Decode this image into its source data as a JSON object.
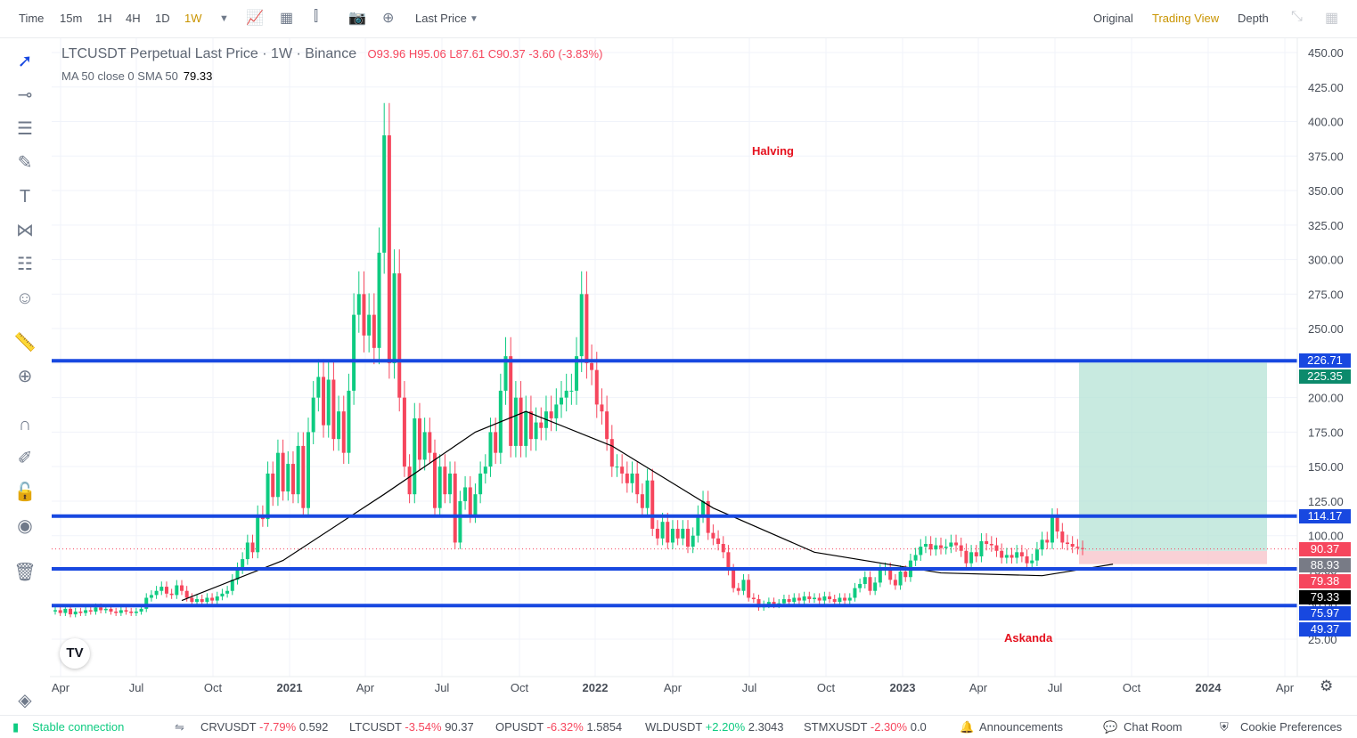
{
  "toolbar": {
    "time_label": "Time",
    "intervals": [
      "15m",
      "1H",
      "4H",
      "1D",
      "1W"
    ],
    "active_interval": "1W",
    "price_type": "Last Price",
    "views": [
      "Original",
      "Trading View",
      "Depth"
    ],
    "active_view": "Trading View",
    "colors": {
      "active": "#c99400",
      "text": "#474d57"
    }
  },
  "legend": {
    "symbol_title": "LTCUSDT Perpetual Last Price · 1W · Binance",
    "open": "O93.96",
    "high": "H95.06",
    "low": "L87.61",
    "close": "C90.37",
    "change": "-3.60 (-3.83%)",
    "ma_label": "MA 50 close 0 SMA 50",
    "ma_value": "79.33"
  },
  "annotations": {
    "halving": "Halving",
    "askanda": "Askanda"
  },
  "price_labels": [
    {
      "text": "226.71",
      "value": 226.71,
      "bg": "#1848e0"
    },
    {
      "text": "225.35",
      "value": 225.35,
      "bg": "#0c8a6c"
    },
    {
      "text": "114.17",
      "value": 114.17,
      "bg": "#1848e0"
    },
    {
      "text": "90.37",
      "value": 90.37,
      "bg": "#f6465d"
    },
    {
      "text": "88.93",
      "value": 88.93,
      "bg": "#787b86"
    },
    {
      "text": "79.38",
      "value": 79.38,
      "bg": "#f6465d"
    },
    {
      "text": "79.33",
      "value": 79.33,
      "bg": "#000000"
    },
    {
      "text": "75.97",
      "value": 75.97,
      "bg": "#1848e0"
    },
    {
      "text": "49.37",
      "value": 49.37,
      "bg": "#1848e0"
    }
  ],
  "chart_data": {
    "type": "candlestick",
    "interval": "1W",
    "y_axis": {
      "ticks": [
        450,
        425,
        400,
        375,
        350,
        325,
        300,
        275,
        250,
        225,
        200,
        175,
        150,
        125,
        100,
        75,
        50,
        25
      ],
      "range": [
        15,
        460
      ]
    },
    "x_axis": {
      "ticks": [
        "Apr",
        "Jul",
        "Oct",
        "2021",
        "Apr",
        "Jul",
        "Oct",
        "2022",
        "Apr",
        "Jul",
        "Oct",
        "2023",
        "Apr",
        "Jul",
        "Oct",
        "2024",
        "Apr"
      ]
    },
    "horizontal_lines": [
      226.71,
      114.17,
      75.97,
      49.37
    ],
    "position_tool": {
      "entry": 88.93,
      "target": 225.35,
      "stop": 79.38
    },
    "last_price": 90.37,
    "ma50_last": 79.33,
    "closes": [
      46,
      44,
      47,
      43,
      45,
      44,
      46,
      45,
      48,
      46,
      47,
      45,
      44,
      46,
      45,
      44,
      45,
      47,
      55,
      57,
      60,
      63,
      58,
      57,
      64,
      60,
      55,
      52,
      54,
      52,
      55,
      53,
      56,
      58,
      60,
      68,
      76,
      83,
      95,
      88,
      115,
      112,
      145,
      128,
      160,
      132,
      152,
      130,
      165,
      120,
      175,
      200,
      215,
      180,
      213,
      170,
      190,
      160,
      205,
      260,
      275,
      245,
      260,
      236,
      305,
      390,
      225,
      290,
      200,
      150,
      130,
      185,
      155,
      175,
      160,
      120,
      150,
      130,
      145,
      95,
      125,
      135,
      115,
      130,
      145,
      150,
      175,
      160,
      205,
      230,
      165,
      200,
      165,
      190,
      170,
      182,
      178,
      190,
      185,
      195,
      200,
      205,
      205,
      230,
      275,
      225,
      220,
      195,
      190,
      170,
      150,
      150,
      145,
      138,
      145,
      130,
      120,
      140,
      105,
      98,
      110,
      95,
      105,
      98,
      105,
      92,
      100,
      115,
      125,
      102,
      98,
      94,
      88,
      75,
      62,
      60,
      68,
      55,
      54,
      48,
      50,
      52,
      50,
      51,
      54,
      52,
      55,
      53,
      56,
      54,
      55,
      53,
      56,
      54,
      52,
      55,
      53,
      55,
      62,
      65,
      70,
      60,
      66,
      75,
      76,
      68,
      64,
      74,
      70,
      82,
      86,
      92,
      94,
      90,
      93,
      91,
      92,
      95,
      93,
      89,
      80,
      88,
      85,
      96,
      94,
      93,
      89,
      84,
      86,
      84,
      88,
      85,
      80,
      82,
      90,
      97,
      95,
      113,
      103,
      95,
      94,
      92,
      91,
      90.37
    ],
    "ma50": [
      {
        "i": 25,
        "v": 53
      },
      {
        "i": 45,
        "v": 82
      },
      {
        "i": 65,
        "v": 130
      },
      {
        "i": 83,
        "v": 175
      },
      {
        "i": 93,
        "v": 190
      },
      {
        "i": 110,
        "v": 165
      },
      {
        "i": 130,
        "v": 120
      },
      {
        "i": 150,
        "v": 88
      },
      {
        "i": 175,
        "v": 73
      },
      {
        "i": 195,
        "v": 71
      },
      {
        "i": 209,
        "v": 79.33
      }
    ]
  },
  "bottom_bar": {
    "connection": "Stable connection",
    "tickers": [
      {
        "symbol": "CRVUSDT",
        "change": "-7.79%",
        "price": "0.592"
      },
      {
        "symbol": "LTCUSDT",
        "change": "-3.54%",
        "price": "90.37"
      },
      {
        "symbol": "OPUSDT",
        "change": "-6.32%",
        "price": "1.5854"
      },
      {
        "symbol": "WLDUSDT",
        "change": "+2.20%",
        "price": "2.3043"
      },
      {
        "symbol": "STMXUSDT",
        "change": "-2.30%",
        "price": "0.0"
      }
    ],
    "announcements": "Announcements",
    "chat_room": "Chat Room",
    "cookie": "Cookie Preferences"
  }
}
